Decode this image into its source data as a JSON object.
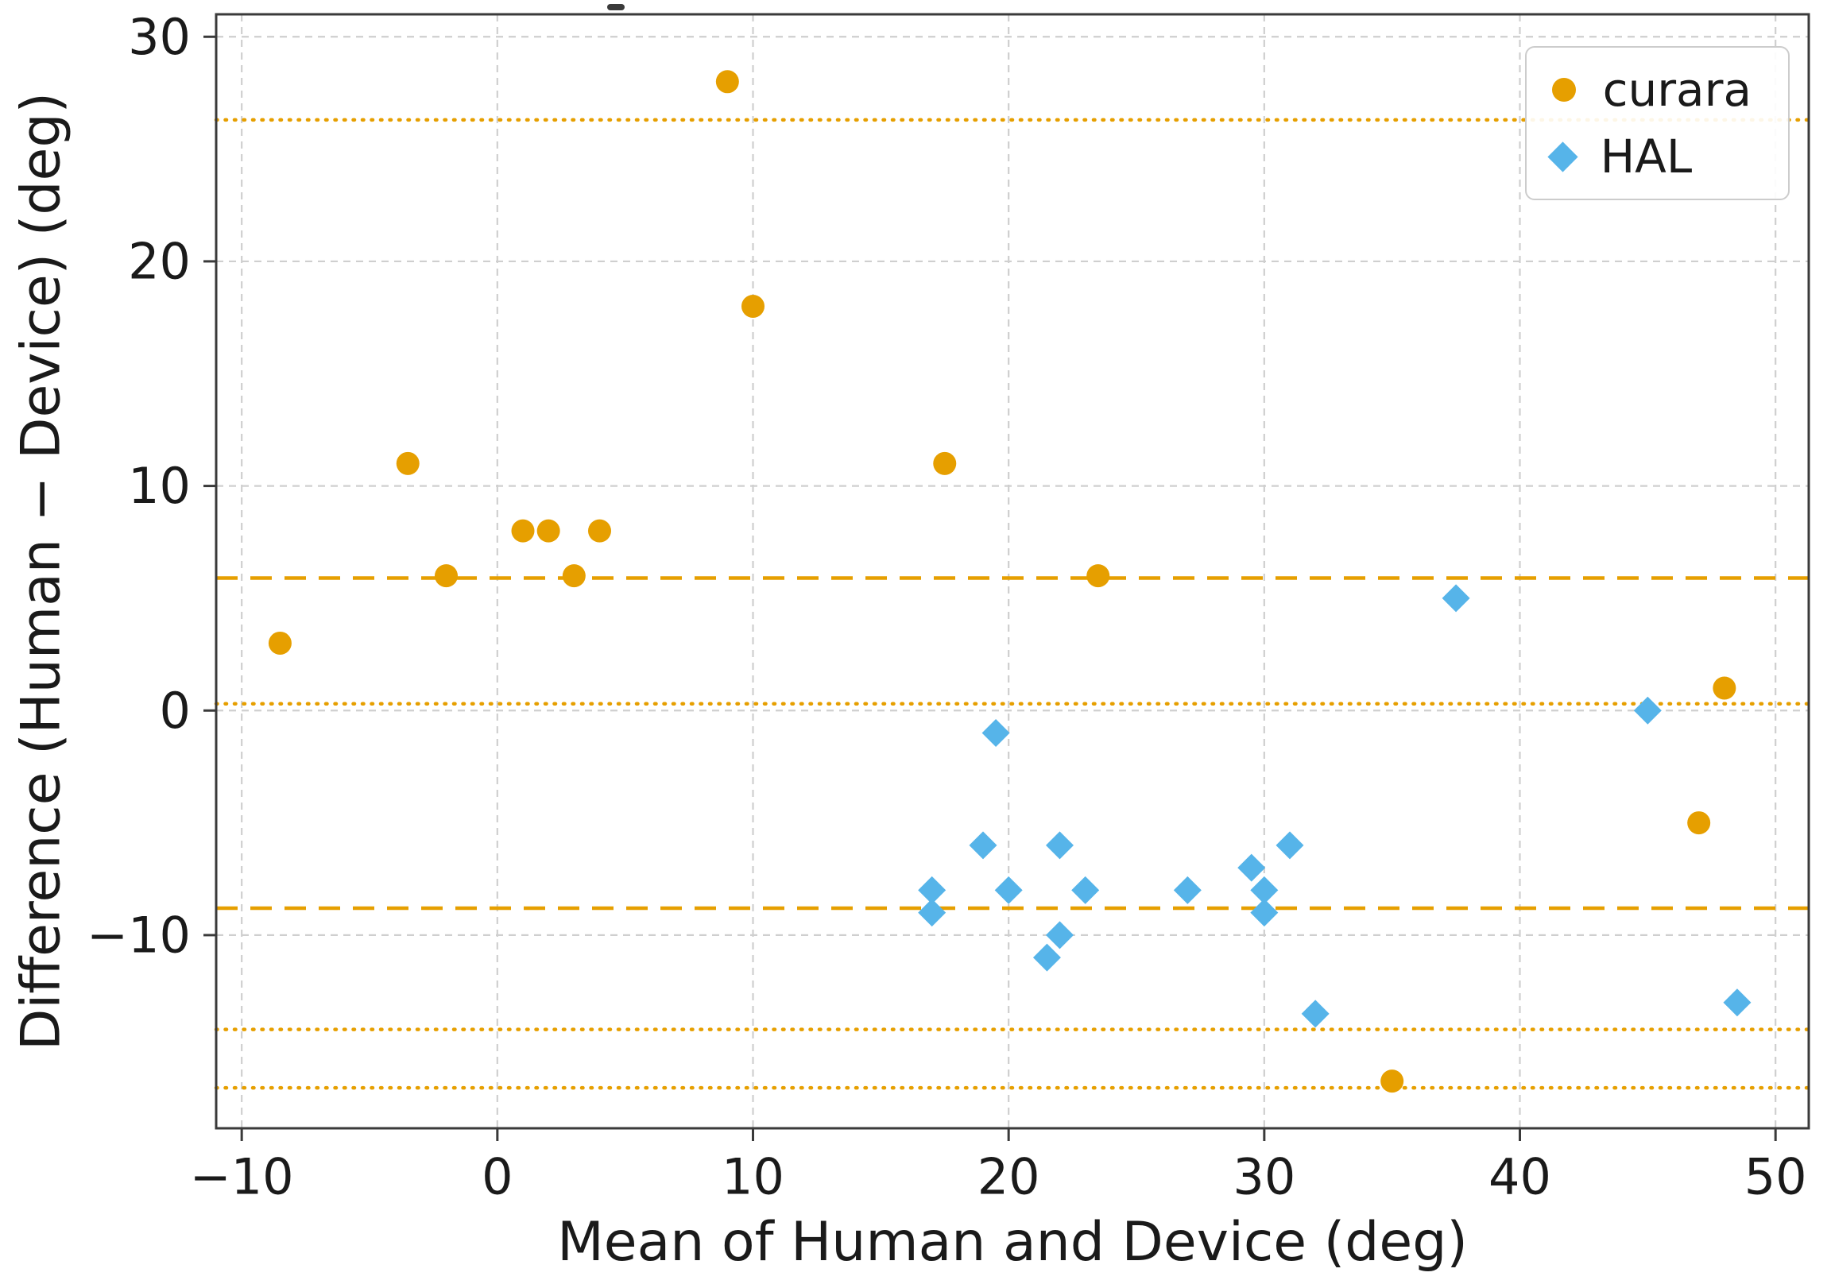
{
  "chart_data": {
    "type": "scatter",
    "title": "",
    "xlabel": "Mean of Human and Device (deg)",
    "ylabel": "Difference (Human − Device) (deg)",
    "xlim": [
      -11,
      51.3
    ],
    "ylim": [
      -18.6,
      31.0
    ],
    "xticks": [
      -10,
      0,
      10,
      20,
      30,
      40,
      50
    ],
    "yticks": [
      -10,
      0,
      10,
      20,
      30
    ],
    "grid": true,
    "grid_style": "dashed",
    "legend_position": "upper right",
    "series": [
      {
        "name": "curara",
        "marker": "circle",
        "color": "#E69F00",
        "points": [
          [
            -8.5,
            3
          ],
          [
            -3.5,
            11
          ],
          [
            -2,
            6
          ],
          [
            1,
            8
          ],
          [
            2,
            8
          ],
          [
            3,
            6
          ],
          [
            4,
            8
          ],
          [
            9,
            28
          ],
          [
            10,
            18
          ],
          [
            17.5,
            11
          ],
          [
            23.5,
            6
          ],
          [
            35,
            -16.5
          ],
          [
            47,
            -5
          ],
          [
            48,
            1
          ]
        ]
      },
      {
        "name": "HAL",
        "marker": "diamond",
        "color": "#56B4E9",
        "points": [
          [
            17,
            -8
          ],
          [
            17,
            -9
          ],
          [
            19,
            -6
          ],
          [
            19.5,
            -1
          ],
          [
            20,
            -8
          ],
          [
            21.5,
            -11
          ],
          [
            22,
            -6
          ],
          [
            22,
            -10
          ],
          [
            23,
            -8
          ],
          [
            27,
            -8
          ],
          [
            29.5,
            -7
          ],
          [
            30,
            -8
          ],
          [
            30,
            -9
          ],
          [
            31,
            -6
          ],
          [
            32,
            -13.5
          ],
          [
            37.5,
            5
          ],
          [
            45,
            0
          ],
          [
            48.5,
            -13
          ]
        ]
      }
    ],
    "reference_lines": [
      {
        "y": 5.9,
        "style": "dashed",
        "color": "#E69F00",
        "meaning": "bias curara"
      },
      {
        "y": -8.8,
        "style": "dashed",
        "color": "#E69F00",
        "meaning": "bias HAL"
      },
      {
        "y": 26.3,
        "style": "dotted",
        "color": "#E69F00",
        "meaning": "upper limit of agreement"
      },
      {
        "y": 0.3,
        "style": "dotted",
        "color": "#E69F00",
        "meaning": "limit of agreement"
      },
      {
        "y": -14.2,
        "style": "dotted",
        "color": "#E69F00",
        "meaning": "limit of agreement"
      },
      {
        "y": -16.8,
        "style": "dotted",
        "color": "#E69F00",
        "meaning": "lower limit of agreement"
      }
    ]
  }
}
